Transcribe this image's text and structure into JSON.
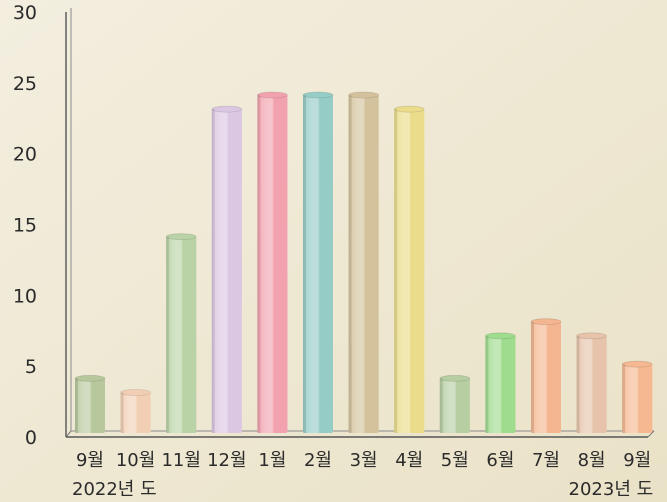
{
  "chart_data": {
    "type": "bar",
    "title": "",
    "xlabel": "",
    "ylabel": "",
    "ylim": [
      0,
      30
    ],
    "yticks": [
      0,
      5,
      10,
      15,
      20,
      25,
      30
    ],
    "grid": false,
    "categories": [
      "9월",
      "10월",
      "11월",
      "12월",
      "1월",
      "2월",
      "3월",
      "4월",
      "5월",
      "6월",
      "7월",
      "8월",
      "9월"
    ],
    "values": [
      4,
      3,
      14,
      23,
      24,
      24,
      24,
      23,
      4,
      7,
      8,
      7,
      5
    ],
    "colors": [
      "#b7c99c",
      "#f2cfb4",
      "#b9d3a6",
      "#dcc7e3",
      "#f2a2ae",
      "#96ccc6",
      "#d3c29c",
      "#eadc8a",
      "#b7cea2",
      "#9fdc8e",
      "#f4b690",
      "#e6c3aa",
      "#f6b891"
    ],
    "group_labels": [
      {
        "text": "2022년 도",
        "category_index": 0
      },
      {
        "text": "2023년 도",
        "category_index": 12
      }
    ]
  }
}
